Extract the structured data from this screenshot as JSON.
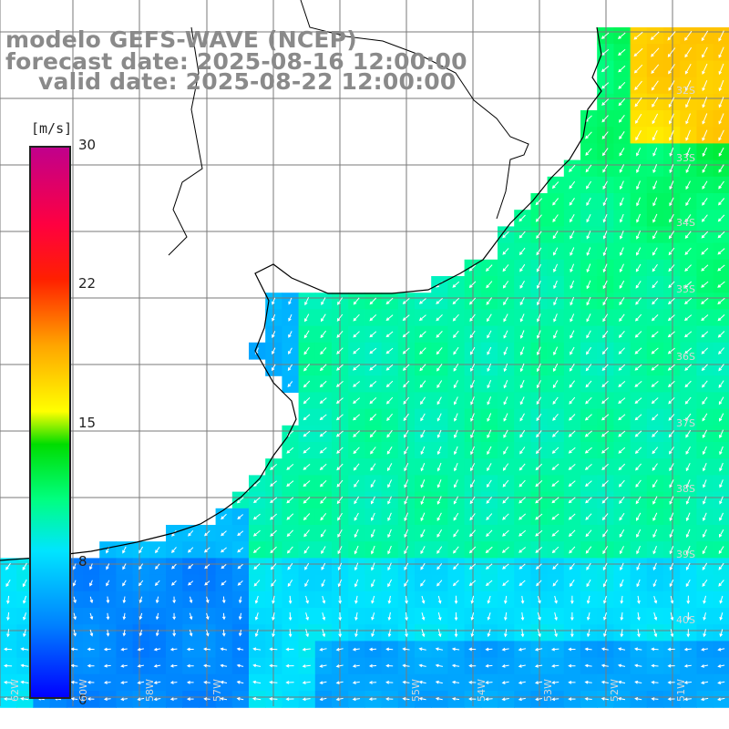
{
  "title": {
    "model": "modelo GEFS-WAVE (NCEP)",
    "forecast": "forecast date: 2025-08-16 12:00:00",
    "valid": "valid date: 2025-08-22 12:00:00"
  },
  "colorbar": {
    "unit": "[m/s]",
    "ticks": [
      "30",
      "22",
      "15",
      "8",
      "0"
    ],
    "tick_values": [
      30,
      22,
      15,
      8,
      0
    ],
    "colors": [
      "#0000ff",
      "#0080ff",
      "#00e5ff",
      "#00ff80",
      "#00dd00",
      "#ffff00",
      "#ffa500",
      "#ff2000",
      "#ff0040",
      "#c0008c"
    ]
  },
  "map": {
    "lat_labels": [
      "32S",
      "33S",
      "34S",
      "35S",
      "36S",
      "37S",
      "38S",
      "39S",
      "40S"
    ],
    "lon_labels": [
      "62W",
      "60W",
      "58W",
      "57W",
      "55W",
      "54W",
      "53W",
      "52W",
      "51W"
    ],
    "grid": true,
    "land_color": "#ffffff",
    "coastline_color": "#000000",
    "arrow_color": "#ffffff"
  }
}
